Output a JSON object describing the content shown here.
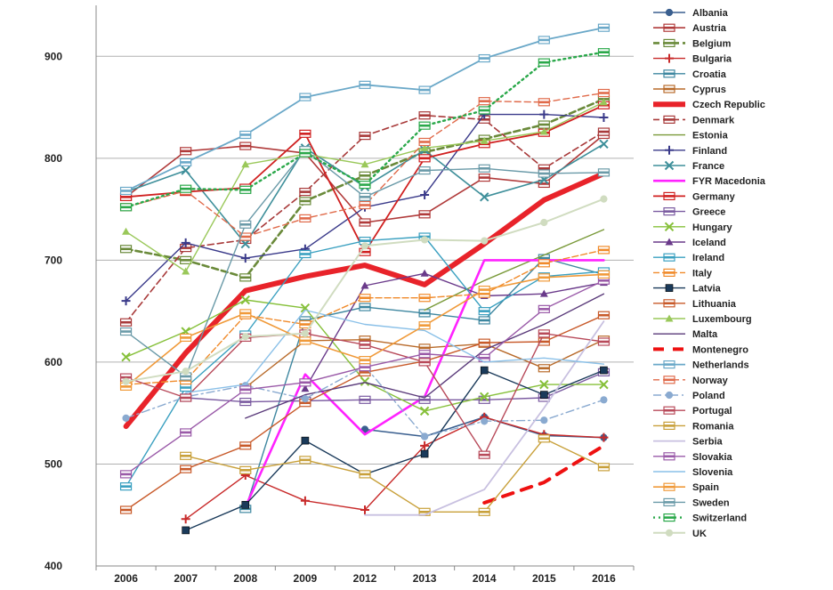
{
  "chart_data": {
    "type": "line",
    "categories": [
      "2006",
      "2007",
      "2008",
      "2009",
      "2012",
      "2013",
      "2014",
      "2015",
      "2016"
    ],
    "ylim": [
      400,
      950
    ],
    "yticks": [
      400,
      500,
      600,
      700,
      800,
      900
    ],
    "grid": true,
    "legend_position": "right",
    "series": [
      {
        "name": "Albania",
        "color": "#3a5f8f",
        "width": 1.6,
        "dash": "",
        "marker": "circle",
        "values": [
          null,
          null,
          null,
          null,
          534,
          527,
          546,
          528,
          526
        ]
      },
      {
        "name": "Austria",
        "color": "#b03a3a",
        "width": 1.6,
        "dash": "",
        "marker": "flag",
        "values": [
          762,
          807,
          812,
          805,
          737,
          745,
          781,
          775,
          823
        ]
      },
      {
        "name": "Belgium",
        "color": "#6a8a3a",
        "width": 2.6,
        "dash": "7,4",
        "marker": "flag",
        "values": [
          711,
          700,
          683,
          758,
          783,
          806,
          819,
          833,
          858
        ]
      },
      {
        "name": "Bulgaria",
        "color": "#c82a2a",
        "width": 1.4,
        "dash": "",
        "marker": "plus",
        "values": [
          null,
          446,
          489,
          464,
          455,
          518,
          546,
          529,
          526
        ]
      },
      {
        "name": "Croatia",
        "color": "#3e87a0",
        "width": 1.4,
        "dash": "",
        "marker": "flag",
        "values": [
          null,
          null,
          456,
          641,
          654,
          648,
          641,
          702,
          686
        ]
      },
      {
        "name": "Cyprus",
        "color": "#b86a2a",
        "width": 1.4,
        "dash": "",
        "marker": "flag",
        "values": [
          null,
          null,
          575,
          621,
          622,
          614,
          618,
          594,
          622
        ]
      },
      {
        "name": "Czech Republic",
        "color": "#e8232a",
        "width": 6,
        "dash": "",
        "marker": "none",
        "values": [
          537,
          609,
          670,
          684,
          695,
          676,
          716,
          759,
          785
        ]
      },
      {
        "name": "Denmark",
        "color": "#a83a3a",
        "width": 1.6,
        "dash": "7,4",
        "marker": "flag",
        "values": [
          639,
          712,
          720,
          767,
          822,
          842,
          838,
          790,
          826
        ]
      },
      {
        "name": "Estonia",
        "color": "#7a9a3a",
        "width": 1.4,
        "dash": "",
        "marker": "none",
        "values": [
          null,
          null,
          null,
          null,
          null,
          651,
          680,
          705,
          730
        ]
      },
      {
        "name": "Finland",
        "color": "#3a3a8a",
        "width": 1.4,
        "dash": "",
        "marker": "plus",
        "values": [
          660,
          717,
          702,
          711,
          752,
          764,
          843,
          843,
          840
        ]
      },
      {
        "name": "France",
        "color": "#3e8f9a",
        "width": 1.6,
        "dash": "",
        "marker": "x",
        "values": [
          767,
          788,
          716,
          810,
          772,
          808,
          762,
          779,
          814
        ]
      },
      {
        "name": "FYR Macedonia",
        "color": "#ff22ff",
        "width": 2.6,
        "dash": "",
        "marker": "none",
        "values": [
          null,
          null,
          458,
          588,
          529,
          566,
          700,
          700,
          700
        ]
      },
      {
        "name": "Germany",
        "color": "#d02020",
        "width": 1.8,
        "dash": "",
        "marker": "flag",
        "values": [
          762,
          767,
          771,
          824,
          708,
          800,
          814,
          825,
          852
        ]
      },
      {
        "name": "Greece",
        "color": "#7a5aa0",
        "width": 1.4,
        "dash": "",
        "marker": "flag",
        "values": [
          null,
          565,
          561,
          562,
          563,
          563,
          563,
          565,
          590
        ]
      },
      {
        "name": "Hungary",
        "color": "#86c03a",
        "width": 1.4,
        "dash": "",
        "marker": "x",
        "values": [
          605,
          630,
          661,
          653,
          581,
          552,
          566,
          578,
          578
        ]
      },
      {
        "name": "Iceland",
        "color": "#6a3a8a",
        "width": 1.4,
        "dash": "",
        "marker": "triangle",
        "values": [
          null,
          null,
          null,
          574,
          675,
          687,
          665,
          667,
          678
        ]
      },
      {
        "name": "Ireland",
        "color": "#3aa0c0",
        "width": 1.4,
        "dash": "",
        "marker": "flag",
        "values": [
          478,
          575,
          627,
          706,
          719,
          723,
          650,
          684,
          689
        ]
      },
      {
        "name": "Italy",
        "color": "#f08a2a",
        "width": 1.4,
        "dash": "7,3",
        "marker": "flag",
        "values": [
          578,
          582,
          646,
          637,
          663,
          663,
          667,
          697,
          710
        ]
      },
      {
        "name": "Latvia",
        "color": "#1a3a5a",
        "width": 1.4,
        "dash": "",
        "marker": "square",
        "values": [
          null,
          435,
          460,
          523,
          490,
          510,
          592,
          568,
          592
        ]
      },
      {
        "name": "Lithuania",
        "color": "#c85a2a",
        "width": 1.4,
        "dash": "",
        "marker": "flag",
        "values": [
          455,
          495,
          518,
          560,
          590,
          601,
          619,
          620,
          646
        ]
      },
      {
        "name": "Luxembourg",
        "color": "#9ac85a",
        "width": 1.4,
        "dash": "",
        "marker": "triangle",
        "values": [
          728,
          689,
          794,
          804,
          794,
          810,
          817,
          826,
          855
        ]
      },
      {
        "name": "Malta",
        "color": "#5a3a7a",
        "width": 1.4,
        "dash": "",
        "marker": "none",
        "values": [
          null,
          null,
          545,
          568,
          580,
          565,
          612,
          637,
          667
        ]
      },
      {
        "name": "Montenegro",
        "color": "#ee1111",
        "width": 4,
        "dash": "12,10",
        "marker": "none",
        "values": [
          null,
          null,
          null,
          null,
          null,
          null,
          462,
          482,
          518
        ]
      },
      {
        "name": "Netherlands",
        "color": "#6aa8c8",
        "width": 1.8,
        "dash": "",
        "marker": "flag",
        "values": [
          768,
          796,
          823,
          860,
          872,
          867,
          898,
          916,
          928
        ]
      },
      {
        "name": "Norway",
        "color": "#e06a4a",
        "width": 1.4,
        "dash": "7,4",
        "marker": "flag",
        "values": [
          752,
          768,
          723,
          741,
          754,
          816,
          856,
          855,
          864
        ]
      },
      {
        "name": "Poland",
        "color": "#8aaad0",
        "width": 1.4,
        "dash": "9,4,2,4",
        "marker": "circle",
        "values": [
          545,
          566,
          577,
          564,
          596,
          527,
          542,
          543,
          563
        ]
      },
      {
        "name": "Portugal",
        "color": "#b84a5a",
        "width": 1.4,
        "dash": "",
        "marker": "flag",
        "values": [
          585,
          565,
          624,
          628,
          617,
          600,
          509,
          628,
          620
        ]
      },
      {
        "name": "Romania",
        "color": "#c8a03a",
        "width": 1.4,
        "dash": "",
        "marker": "flag",
        "values": [
          null,
          508,
          494,
          504,
          490,
          453,
          453,
          525,
          497
        ]
      },
      {
        "name": "Serbia",
        "color": "#c8c0e0",
        "width": 1.8,
        "dash": "",
        "marker": "none",
        "values": [
          null,
          null,
          null,
          null,
          450,
          450,
          475,
          555,
          640
        ]
      },
      {
        "name": "Slovakia",
        "color": "#9a5aa8",
        "width": 1.4,
        "dash": "",
        "marker": "flag",
        "values": [
          490,
          531,
          573,
          580,
          595,
          608,
          604,
          652,
          680
        ]
      },
      {
        "name": "Slovenia",
        "color": "#8ac0e8",
        "width": 1.4,
        "dash": "",
        "marker": "none",
        "values": [
          null,
          570,
          578,
          651,
          637,
          631,
          600,
          604,
          598
        ]
      },
      {
        "name": "Spain",
        "color": "#f09a3a",
        "width": 1.6,
        "dash": "",
        "marker": "flag",
        "values": [
          576,
          624,
          648,
          621,
          602,
          636,
          671,
          683,
          686
        ]
      },
      {
        "name": "Sweden",
        "color": "#6a9aa8",
        "width": 1.4,
        "dash": "",
        "marker": "flag",
        "values": [
          630,
          586,
          735,
          808,
          762,
          788,
          790,
          785,
          786
        ]
      },
      {
        "name": "Switzerland",
        "color": "#2aa84a",
        "width": 2.4,
        "dash": "2,4",
        "marker": "flag",
        "values": [
          752,
          770,
          769,
          805,
          774,
          832,
          847,
          894,
          904
        ]
      },
      {
        "name": "UK",
        "color": "#d0dcc0",
        "width": 2,
        "dash": "",
        "marker": "circle",
        "values": [
          581,
          591,
          625,
          628,
          714,
          720,
          719,
          737,
          760
        ]
      }
    ]
  }
}
